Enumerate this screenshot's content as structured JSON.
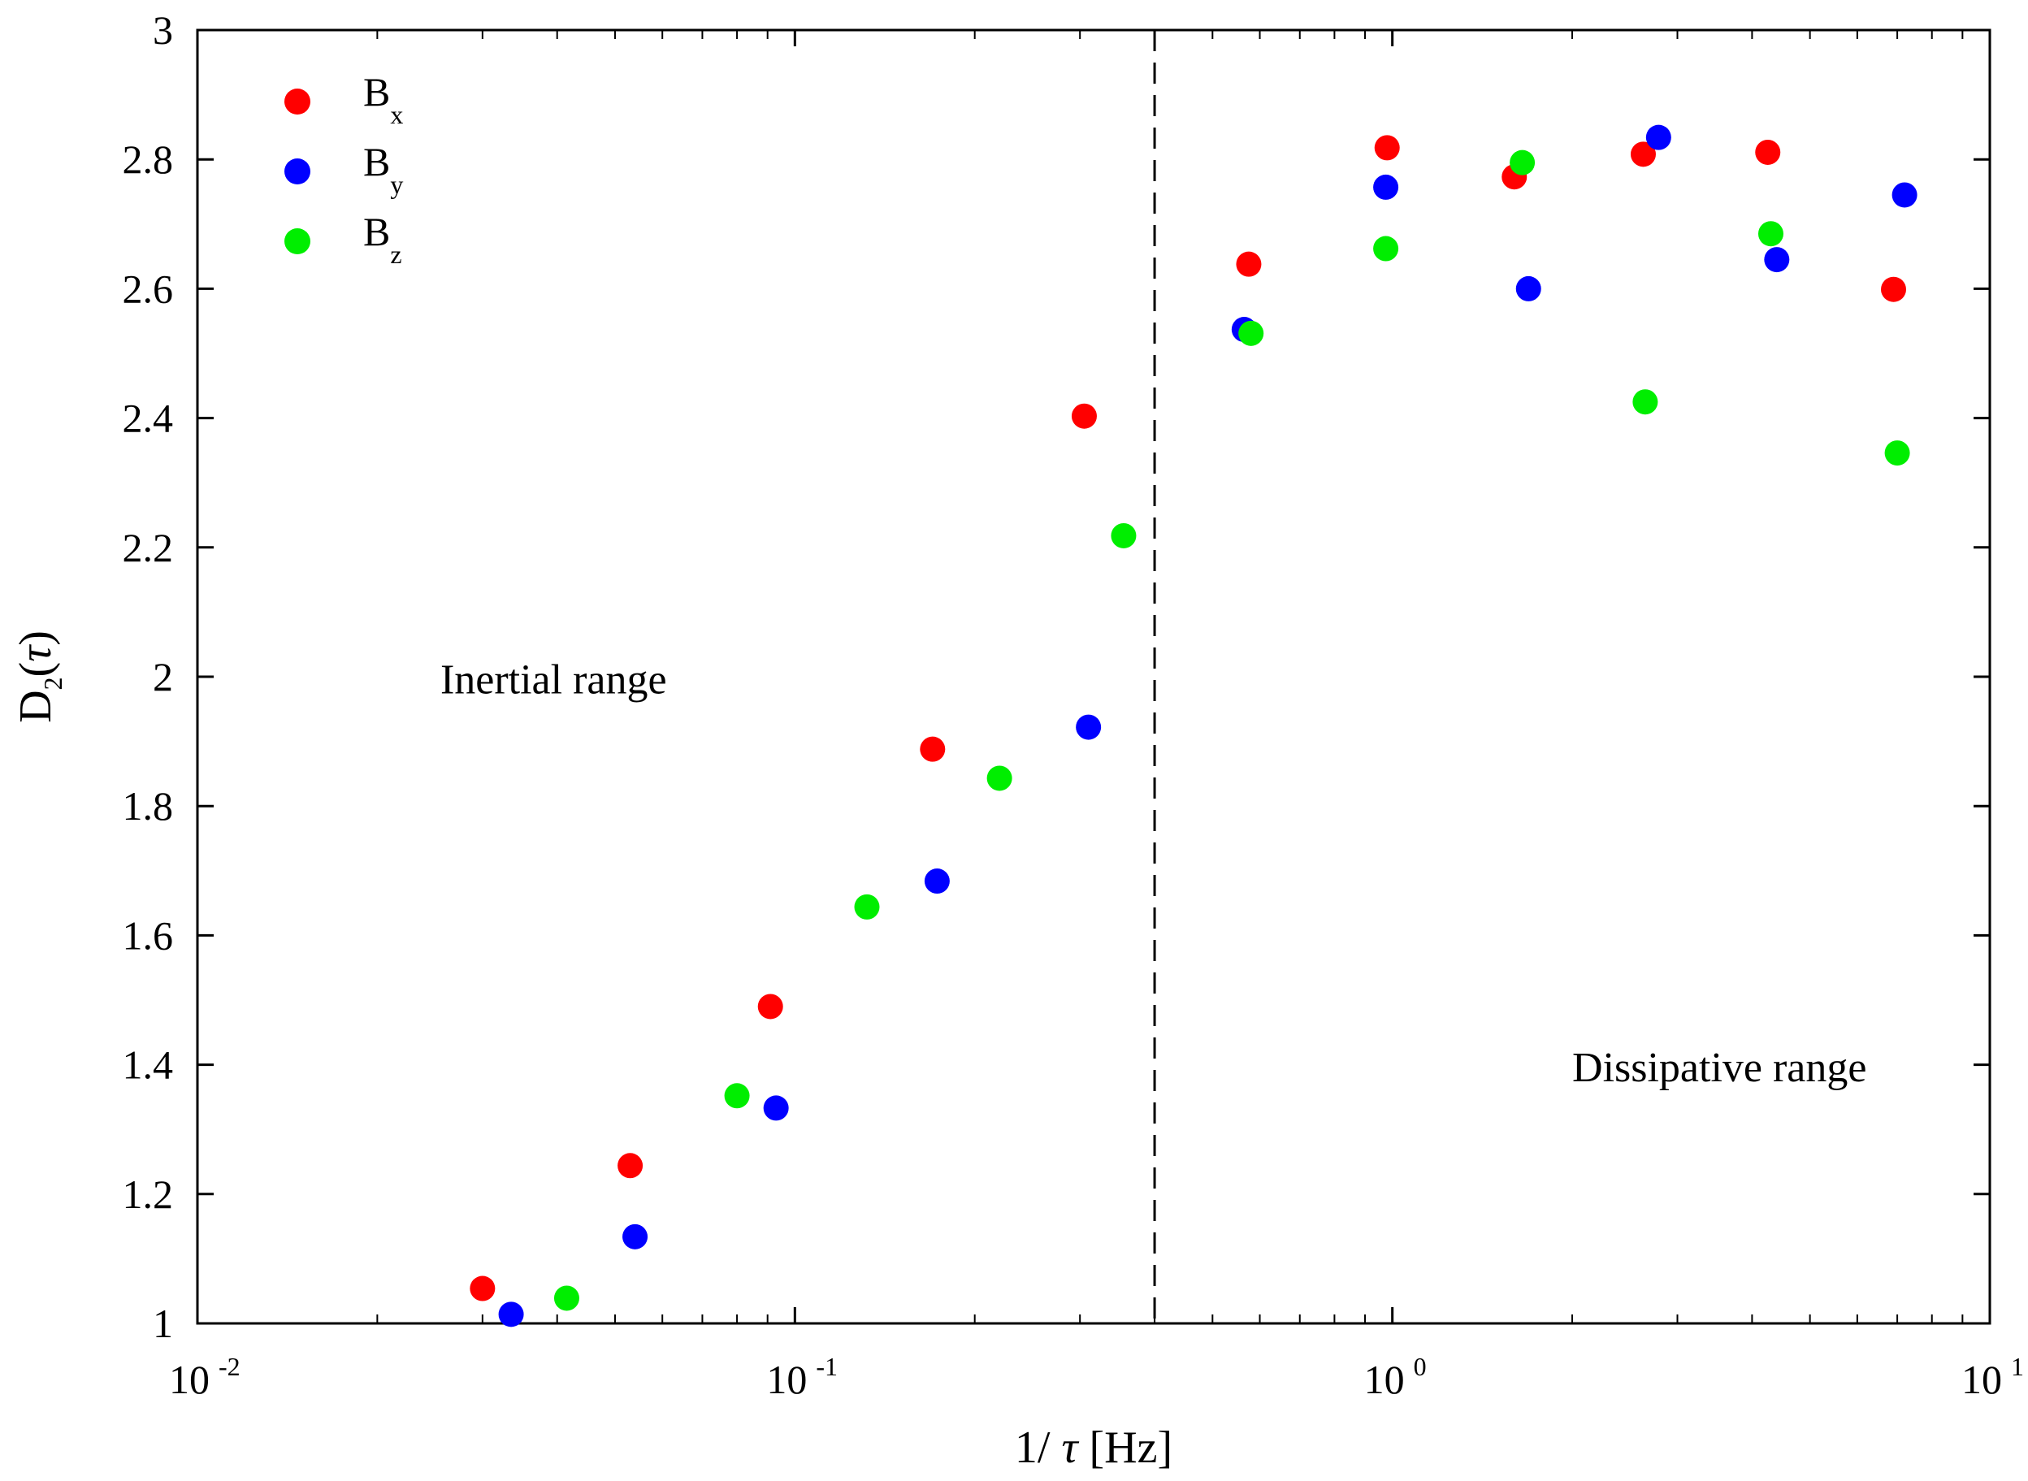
{
  "chart_data": {
    "type": "scatter",
    "title": "",
    "xlabel": {
      "prefix": "1/ ",
      "symbol": "τ",
      "suffix": " [Hz]"
    },
    "ylabel": {
      "main": "D",
      "sub": "2",
      "open": "(",
      "symbol": "τ",
      "close": ")"
    },
    "xscale": "log",
    "xlim": [
      0.01,
      10
    ],
    "ylim": [
      1,
      3
    ],
    "x_ticks": [
      {
        "base": "10",
        "exp": "-2"
      },
      {
        "base": "10",
        "exp": "-1"
      },
      {
        "base": "10",
        "exp": "0"
      },
      {
        "base": "10",
        "exp": "1"
      }
    ],
    "y_ticks": [
      "1",
      "1.2",
      "1.4",
      "1.6",
      "1.8",
      "2",
      "2.2",
      "2.4",
      "2.6",
      "2.8",
      "3"
    ],
    "grid": false,
    "legend_position": "top-left",
    "vline": {
      "x": 0.4,
      "style": "dashed"
    },
    "annotations": [
      {
        "text": "Inertial range",
        "x": 0.0255,
        "y": 1.997
      },
      {
        "text": "Dissipative range",
        "x": 2.0,
        "y": 1.397
      }
    ],
    "series": [
      {
        "name": "Bx",
        "label_main": "B",
        "label_sub": "x",
        "color": "#ff0000",
        "x": [
          0.03,
          0.053,
          0.091,
          0.17,
          0.305,
          0.575,
          0.98,
          1.6,
          2.63,
          4.25,
          6.9
        ],
        "y": [
          1.054,
          1.244,
          1.49,
          1.888,
          2.403,
          2.638,
          2.818,
          2.773,
          2.808,
          2.811,
          2.599
        ]
      },
      {
        "name": "By",
        "label_main": "B",
        "label_sub": "y",
        "color": "#0000ff",
        "x": [
          0.0335,
          0.054,
          0.093,
          0.173,
          0.31,
          0.565,
          0.975,
          1.69,
          2.79,
          4.4,
          7.2
        ],
        "y": [
          1.014,
          1.134,
          1.333,
          1.684,
          1.922,
          2.537,
          2.757,
          2.6,
          2.834,
          2.645,
          2.745
        ]
      },
      {
        "name": "Bz",
        "label_main": "B",
        "label_sub": "z",
        "color": "#00ee00",
        "x": [
          0.0415,
          0.08,
          0.132,
          0.22,
          0.355,
          0.58,
          0.975,
          1.65,
          2.65,
          4.3,
          7.0
        ],
        "y": [
          1.039,
          1.352,
          1.644,
          1.843,
          2.218,
          2.531,
          2.662,
          2.795,
          2.425,
          2.685,
          2.346
        ]
      }
    ]
  }
}
